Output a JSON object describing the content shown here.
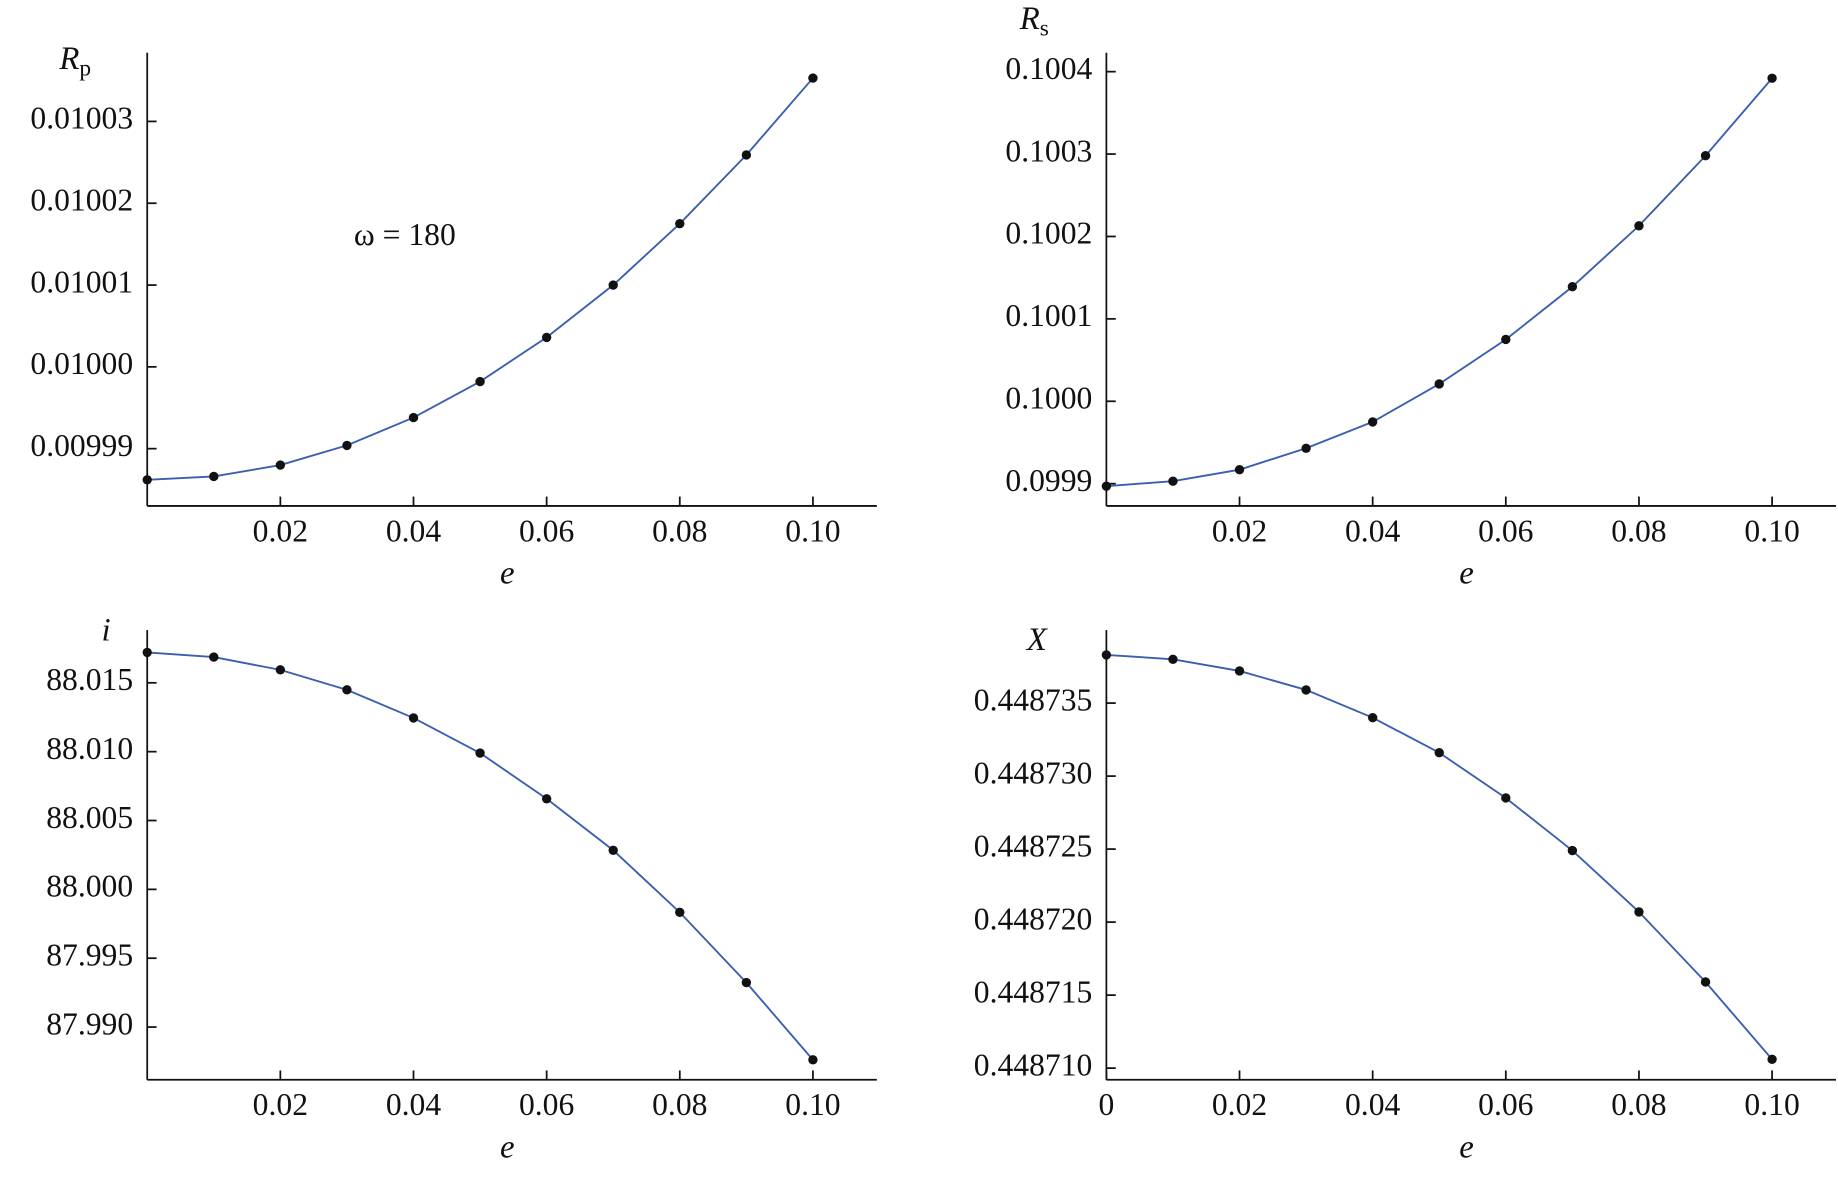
{
  "chart_data": [
    {
      "type": "line",
      "ylabel": "R",
      "ylabel_subscript": "p",
      "xlabel": "e",
      "annotation": "ω = 180",
      "x": [
        0,
        0.01,
        0.02,
        0.03,
        0.04,
        0.05,
        0.06,
        0.07,
        0.08,
        0.09,
        0.1
      ],
      "values": [
        0.0099862,
        0.0099866,
        0.009988,
        0.0099904,
        0.0099938,
        0.0099982,
        0.0100036,
        0.01001,
        0.0100175,
        0.0100259,
        0.0100353
      ],
      "color": "#3a5fb0",
      "marker_color": "#111111",
      "xlim": [
        0,
        0.1096
      ],
      "ylim": [
        0.009983,
        0.0100384
      ],
      "xticks": [
        0.02,
        0.04,
        0.06,
        0.08,
        {
          "value": 0.1,
          "label": "0.10"
        }
      ],
      "yticks": [
        0.00999,
        {
          "value": 0.01,
          "label": "0.01000"
        },
        0.01001,
        0.01002,
        0.01003
      ]
    },
    {
      "type": "line",
      "ylabel": "R",
      "ylabel_subscript": "s",
      "xlabel": "e",
      "x": [
        0,
        0.01,
        0.02,
        0.03,
        0.04,
        0.05,
        0.06,
        0.07,
        0.08,
        0.09,
        0.1
      ],
      "values": [
        0.099897,
        0.099903,
        0.099917,
        0.099943,
        0.099975,
        0.100021,
        0.100075,
        0.100139,
        0.100213,
        0.100298,
        0.100392
      ],
      "color": "#3a5fb0",
      "marker_color": "#111111",
      "xlim": [
        0,
        0.1096
      ],
      "ylim": [
        0.099873,
        0.100423
      ],
      "xticks": [
        0.02,
        0.04,
        0.06,
        0.08,
        {
          "value": 0.1,
          "label": "0.10"
        }
      ],
      "yticks": [
        0.0999,
        {
          "value": 0.1,
          "label": "0.1000"
        },
        0.1001,
        0.1002,
        0.1003,
        0.1004
      ]
    },
    {
      "type": "line",
      "ylabel": "i",
      "xlabel": "e",
      "x": [
        0,
        0.01,
        0.02,
        0.03,
        0.04,
        0.05,
        0.06,
        0.07,
        0.08,
        0.09,
        0.1
      ],
      "values": [
        88.01721,
        88.01687,
        88.01594,
        88.01449,
        88.01245,
        88.0099,
        88.00658,
        88.00284,
        87.99833,
        87.99323,
        87.98762
      ],
      "color": "#3a5fb0",
      "marker_color": "#111111",
      "xlim": [
        0,
        0.1096
      ],
      "ylim": [
        87.98617,
        88.01883
      ],
      "xticks": [
        0.02,
        0.04,
        0.06,
        0.08,
        {
          "value": 0.1,
          "label": "0.10"
        }
      ],
      "yticks": [
        {
          "value": 87.99,
          "label": "87.990"
        },
        87.995,
        {
          "value": 88,
          "label": "88.000"
        },
        88.005,
        {
          "value": 88.01,
          "label": "88.010"
        },
        88.015
      ]
    },
    {
      "type": "line",
      "ylabel": "X",
      "xlabel": "e",
      "x": [
        0,
        0.01,
        0.02,
        0.03,
        0.04,
        0.05,
        0.06,
        0.07,
        0.08,
        0.09,
        0.1
      ],
      "values": [
        0.4487383,
        0.448738,
        0.4487372,
        0.4487359,
        0.448734,
        0.4487316,
        0.4487285,
        0.4487249,
        0.4487207,
        0.4487159,
        0.4487106
      ],
      "color": "#3a5fb0",
      "marker_color": "#111111",
      "xlim": [
        0,
        0.1096
      ],
      "ylim": [
        0.4487092,
        0.44874
      ],
      "xticks": [
        0,
        0.02,
        0.04,
        0.06,
        0.08,
        {
          "value": 0.1,
          "label": "0.10"
        }
      ],
      "yticks": [
        {
          "value": 0.44871,
          "label": "0.448710"
        },
        0.448715,
        {
          "value": 0.44872,
          "label": "0.448720"
        },
        0.448725,
        {
          "value": 0.44873,
          "label": "0.448730"
        },
        0.448735
      ]
    }
  ]
}
